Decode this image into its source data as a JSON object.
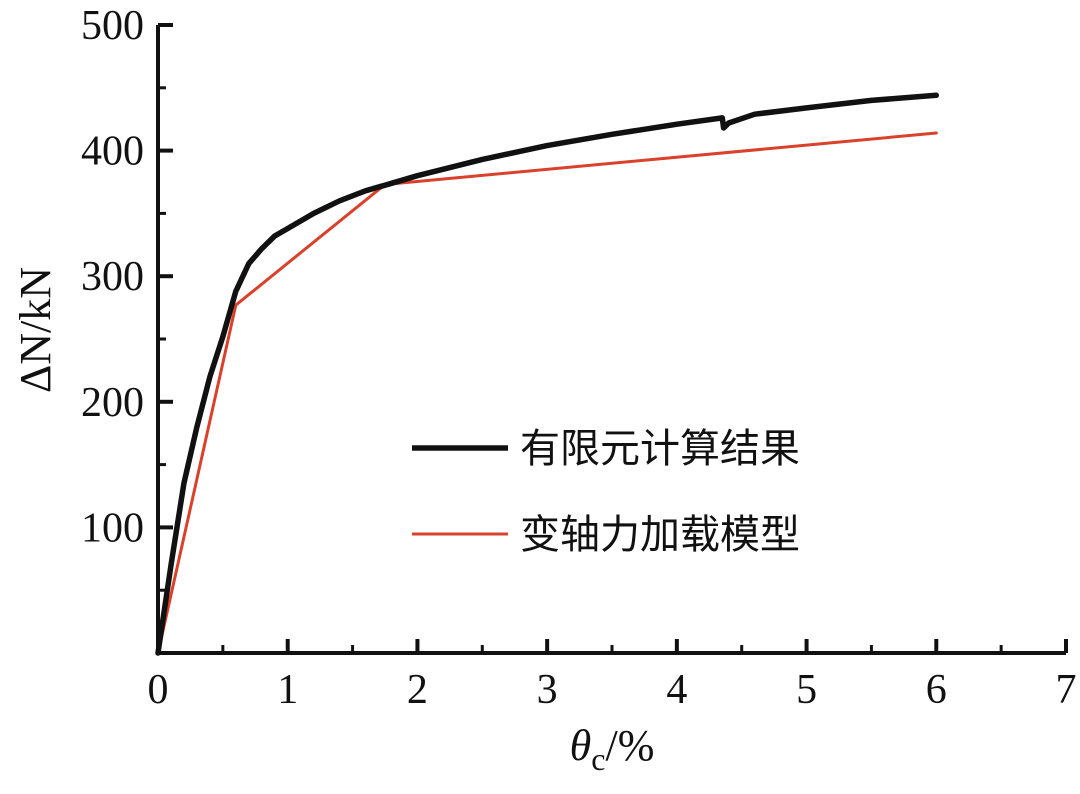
{
  "chart_data": {
    "type": "line",
    "xlabel": {
      "symbol": "θ",
      "subscript": "c",
      "unit": "/%"
    },
    "ylabel": "ΔN/kN",
    "xlim": [
      0,
      7
    ],
    "ylim": [
      0,
      500
    ],
    "x_ticks": [
      0,
      1,
      2,
      3,
      4,
      5,
      6,
      7
    ],
    "y_ticks": [
      100,
      200,
      300,
      400,
      500
    ],
    "x_tick_labels": [
      "0",
      "1",
      "2",
      "3",
      "4",
      "5",
      "6",
      "7"
    ],
    "y_tick_labels": [
      "100",
      "200",
      "300",
      "400",
      "500"
    ],
    "grid": false,
    "legend_position": "center-right",
    "series": [
      {
        "name": "有限元计算结果",
        "color": "#111111",
        "line_style": "thick",
        "points": [
          [
            0,
            0
          ],
          [
            0.1,
            70
          ],
          [
            0.2,
            135
          ],
          [
            0.3,
            180
          ],
          [
            0.4,
            220
          ],
          [
            0.5,
            252
          ],
          [
            0.6,
            288
          ],
          [
            0.7,
            310
          ],
          [
            0.8,
            322
          ],
          [
            0.9,
            332
          ],
          [
            1.0,
            338
          ],
          [
            1.2,
            350
          ],
          [
            1.4,
            360
          ],
          [
            1.6,
            368
          ],
          [
            1.8,
            374
          ],
          [
            2.0,
            380
          ],
          [
            2.5,
            393
          ],
          [
            3.0,
            404
          ],
          [
            3.5,
            413
          ],
          [
            4.0,
            421
          ],
          [
            4.35,
            426
          ],
          [
            4.36,
            418
          ],
          [
            4.4,
            422
          ],
          [
            4.6,
            429
          ],
          [
            5.0,
            434
          ],
          [
            5.5,
            440
          ],
          [
            6.0,
            444
          ]
        ]
      },
      {
        "name": "变轴力加载模型",
        "color": "#d9412b",
        "line_style": "thin",
        "points": [
          [
            0,
            0
          ],
          [
            0.6,
            277
          ],
          [
            1.75,
            373
          ],
          [
            6.0,
            414
          ]
        ]
      }
    ]
  }
}
